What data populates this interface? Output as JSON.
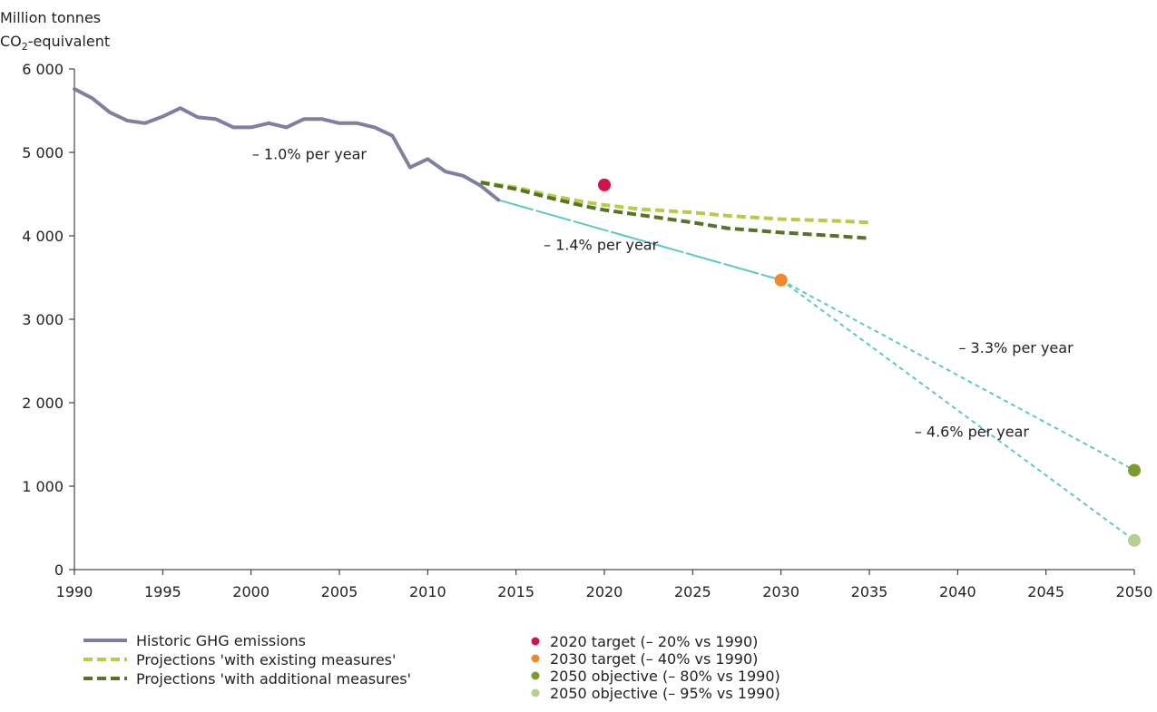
{
  "chart_data": {
    "type": "line",
    "ylabel_line1": "Million tonnes",
    "ylabel_line2_main": "CO",
    "ylabel_line2_sub": "2",
    "ylabel_line2_rest": "-equivalent",
    "xlim": [
      1990,
      2050
    ],
    "ylim": [
      0,
      6000
    ],
    "x_ticks": [
      1990,
      1995,
      2000,
      2005,
      2010,
      2015,
      2020,
      2025,
      2030,
      2035,
      2040,
      2045,
      2050
    ],
    "y_ticks": [
      {
        "value": 0,
        "label": "0"
      },
      {
        "value": 1000,
        "label": "1 000"
      },
      {
        "value": 2000,
        "label": "2 000"
      },
      {
        "value": 3000,
        "label": "3 000"
      },
      {
        "value": 4000,
        "label": "4 000"
      },
      {
        "value": 5000,
        "label": "5 000"
      },
      {
        "value": 6000,
        "label": "6 000"
      }
    ],
    "series": [
      {
        "name": "Historic GHG emissions",
        "color": "#7f7fa0",
        "style": "solid",
        "x": [
          1990,
          1991,
          1992,
          1993,
          1994,
          1995,
          1996,
          1997,
          1998,
          1999,
          2000,
          2001,
          2002,
          2003,
          2004,
          2005,
          2006,
          2007,
          2008,
          2009,
          2010,
          2011,
          2012,
          2013,
          2014
        ],
        "y": [
          5760,
          5650,
          5480,
          5380,
          5350,
          5430,
          5530,
          5420,
          5400,
          5300,
          5300,
          5350,
          5300,
          5400,
          5400,
          5350,
          5350,
          5300,
          5200,
          4820,
          4920,
          4770,
          4720,
          4600,
          4430
        ]
      },
      {
        "name": "Projections 'with existing measures'",
        "color": "#b5cd45",
        "style": "dashed",
        "x": [
          2013,
          2015,
          2017,
          2019,
          2020,
          2022,
          2025,
          2027,
          2030,
          2033,
          2035
        ],
        "y": [
          4640,
          4580,
          4480,
          4400,
          4370,
          4320,
          4280,
          4240,
          4200,
          4180,
          4160
        ]
      },
      {
        "name": "Projections 'with additional measures'",
        "color": "#5a7228",
        "style": "dashed",
        "x": [
          2013,
          2015,
          2017,
          2019,
          2020,
          2022,
          2025,
          2027,
          2030,
          2033,
          2035
        ],
        "y": [
          4640,
          4560,
          4450,
          4350,
          4310,
          4250,
          4160,
          4090,
          4040,
          4000,
          3970
        ]
      }
    ],
    "trend_lines": [
      {
        "from": [
          2014,
          4430
        ],
        "to": [
          2030,
          3470
        ],
        "style": "long-dash",
        "color": "#5ec8c2"
      },
      {
        "from": [
          2030,
          3470
        ],
        "to": [
          2050,
          1190
        ],
        "style": "short-dash",
        "color": "#5ec8c2"
      },
      {
        "from": [
          2030,
          3470
        ],
        "to": [
          2050,
          350
        ],
        "style": "short-dash",
        "color": "#5ec8c2"
      }
    ],
    "points": [
      {
        "name": "2020 target (– 20% vs 1990)",
        "x": 2020,
        "y": 4610,
        "color": "#d2134b"
      },
      {
        "name": "2030 target (– 40% vs 1990)",
        "x": 2030,
        "y": 3470,
        "color": "#f0872d"
      },
      {
        "name": "2050 objective (– 80% vs 1990)",
        "x": 2050,
        "y": 1190,
        "color": "#7a9b2e"
      },
      {
        "name": "2050 objective (– 95% vs 1990)",
        "x": 2050,
        "y": 350,
        "color": "#b4d190"
      }
    ],
    "annotations": [
      {
        "text": "– 1.0% per year",
        "x": 2003.3,
        "y": 4920
      },
      {
        "text": "– 1.4% per year",
        "x": 2019.8,
        "y": 3830
      },
      {
        "text": "– 3.3% per year",
        "x": 2043.3,
        "y": 2600
      },
      {
        "text": "– 4.6% per year",
        "x": 2040.8,
        "y": 1590
      }
    ],
    "legend_placement": "bottom",
    "grid": false
  }
}
